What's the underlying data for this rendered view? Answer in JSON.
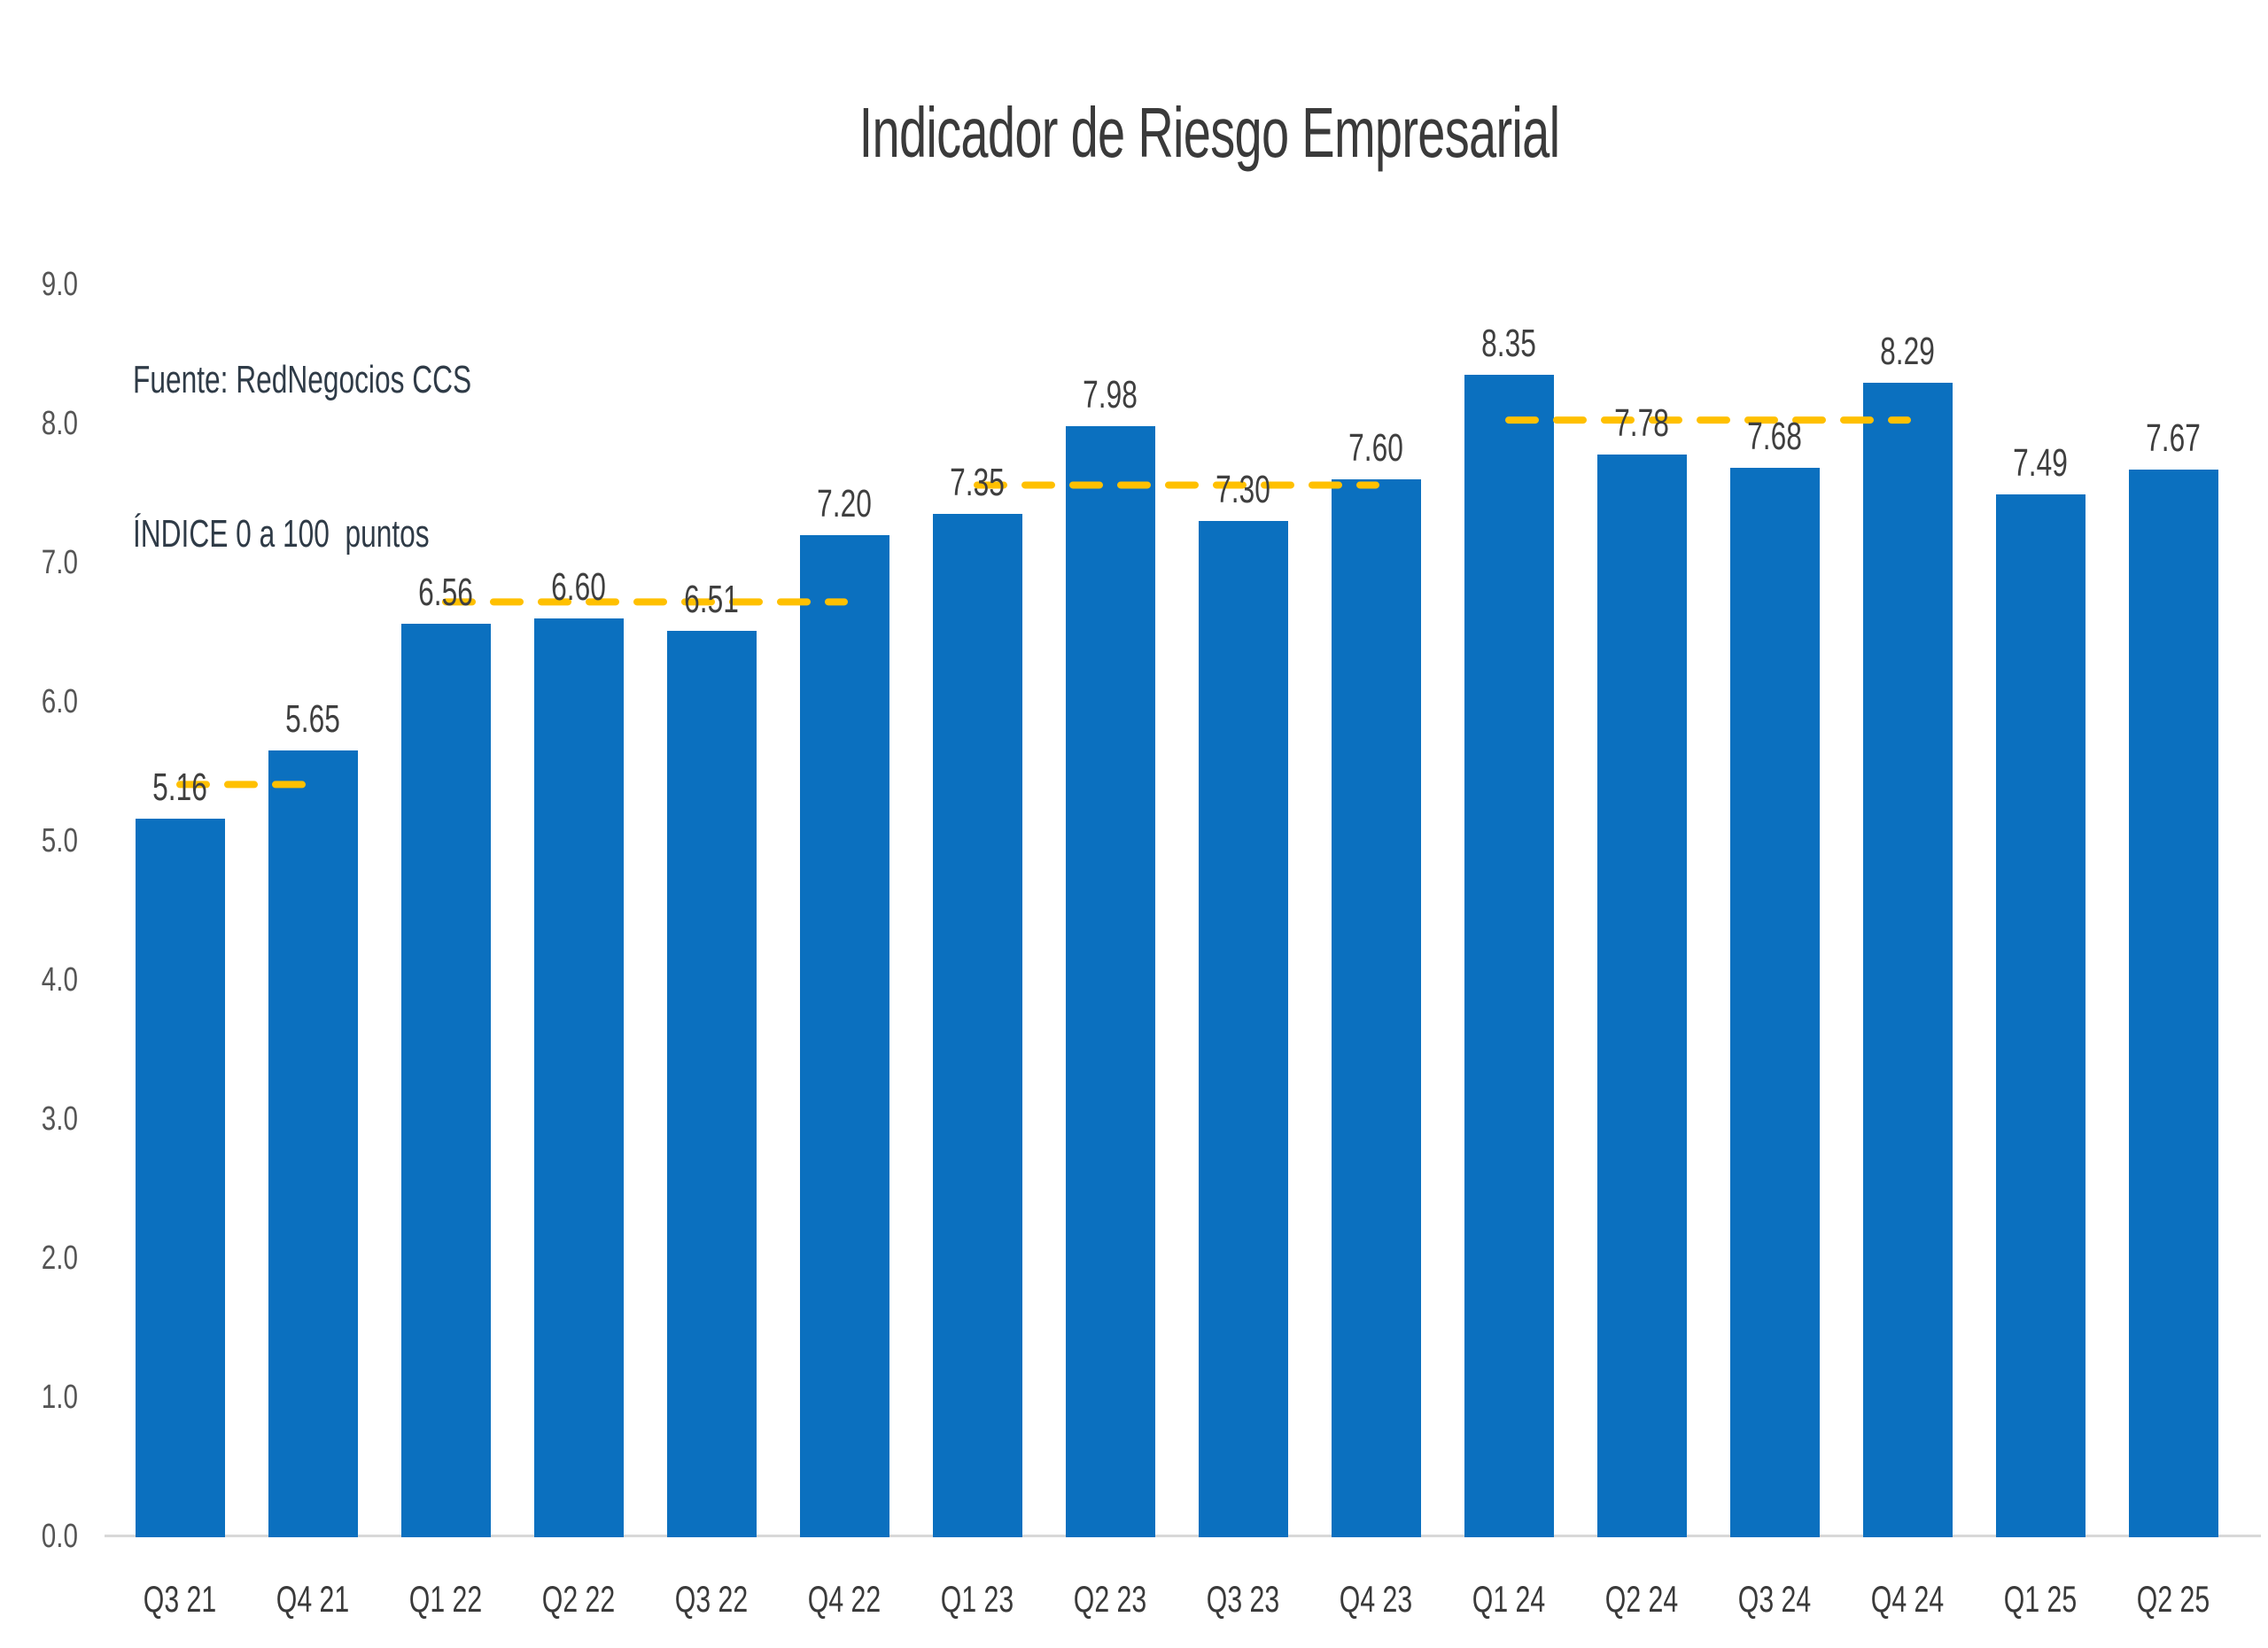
{
  "chart_data": {
    "type": "bar",
    "title": "Indicador de Riesgo Empresarial",
    "annotations": [
      "Fuente: RedNegocios CCS",
      "ÍNDICE 0 a 100  puntos"
    ],
    "categories": [
      "Q3 21",
      "Q4 21",
      "Q1 22",
      "Q2 22",
      "Q3 22",
      "Q4 22",
      "Q1 23",
      "Q2 23",
      "Q3 23",
      "Q4 23",
      "Q1 24",
      "Q2 24",
      "Q3 24",
      "Q4 24",
      "Q1 25",
      "Q2 25"
    ],
    "values": [
      5.16,
      5.65,
      6.56,
      6.6,
      6.51,
      7.2,
      7.35,
      7.98,
      7.3,
      7.6,
      8.35,
      7.78,
      7.68,
      8.29,
      7.49,
      7.67
    ],
    "data_labels": [
      "5.16",
      "5.65",
      "6.56",
      "6.60",
      "6.51",
      "7.20",
      "7.35",
      "7.98",
      "7.30",
      "7.60",
      "8.35",
      "7.78",
      "7.68",
      "8.29",
      "7.49",
      "7.67"
    ],
    "y_axis": {
      "min": 0,
      "max": 9,
      "step": 1,
      "tick_labels": [
        "0.0",
        "1.0",
        "2.0",
        "3.0",
        "4.0",
        "5.0",
        "6.0",
        "7.0",
        "8.0",
        "9.0"
      ]
    },
    "x_axis": {
      "gridlines": false,
      "baseline_visible": true
    },
    "legend": {
      "visible": false
    },
    "average_lines": [
      {
        "year": "2021",
        "value": 5.405,
        "from_category": "Q3 21",
        "to_category": "Q4 21"
      },
      {
        "year": "2022",
        "value": 6.7175,
        "from_category": "Q1 22",
        "to_category": "Q4 22"
      },
      {
        "year": "2023",
        "value": 7.5575,
        "from_category": "Q1 23",
        "to_category": "Q4 23"
      },
      {
        "year": "2024",
        "value": 8.025,
        "from_category": "Q1 24",
        "to_category": "Q4 24"
      }
    ],
    "colors": {
      "bar": "#0b70bf",
      "average_line": "#ffc000",
      "title_text": "#3a3a3a",
      "value_label_text": "#3f3f3f",
      "y_tick_text": "#555555",
      "x_tick_text": "#3a3a3a",
      "source_text": "#2f3b47",
      "baseline": "#d8d8d8",
      "background": "#ffffff"
    }
  }
}
